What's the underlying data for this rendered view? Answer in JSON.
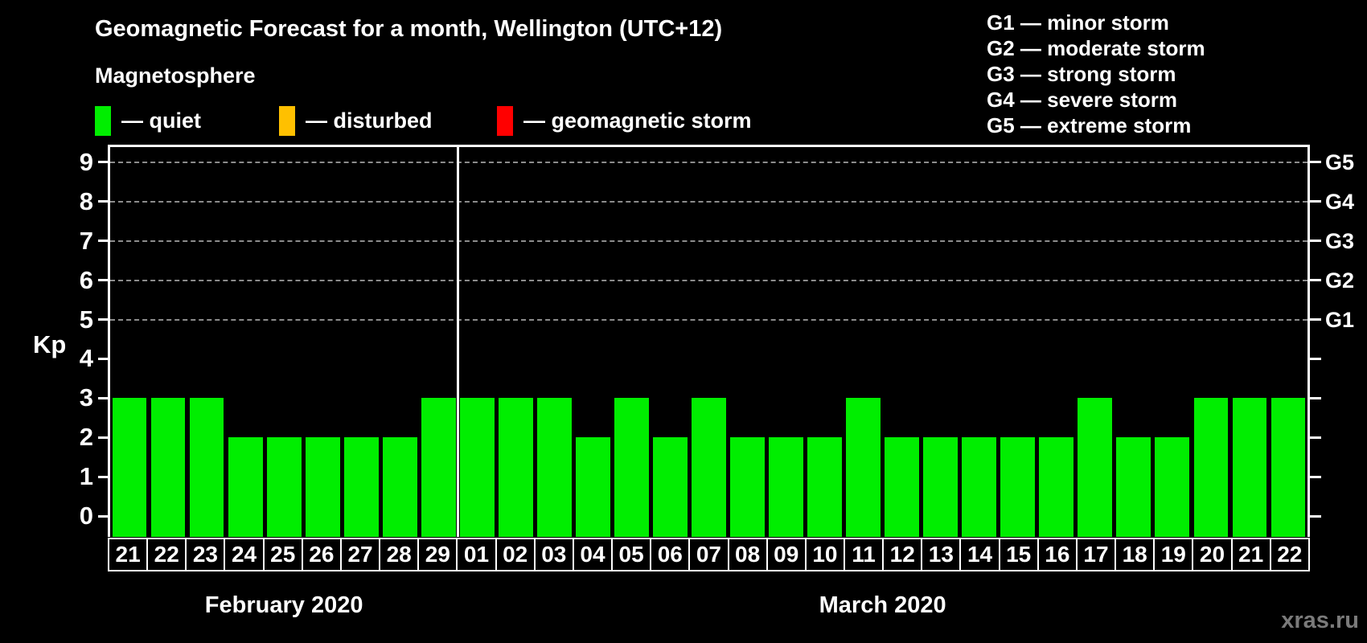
{
  "header": {
    "title": "Geomagnetic Forecast for a month, Wellington (UTC+12)",
    "subtitle": "Magnetosphere"
  },
  "legend": {
    "items": [
      {
        "name": "quiet",
        "label": "— quiet",
        "color": "#00EE00"
      },
      {
        "name": "disturbed",
        "label": "— disturbed",
        "color": "#FFC000"
      },
      {
        "name": "geomagnetic-storm",
        "label": "— geomagnetic storm",
        "color": "#FF0000"
      }
    ]
  },
  "g_scale_legend": {
    "lines": [
      "G1 — minor storm",
      "G2 — moderate storm",
      "G3 — strong storm",
      "G4 — severe storm",
      "G5 — extreme storm"
    ]
  },
  "watermark": "xras.ru",
  "colors": {
    "background": "#000000",
    "text": "#FFFFFF",
    "grid": "#8C8C8C",
    "axis": "#FFFFFF",
    "watermark": "#7A7A7A"
  },
  "chart_data": {
    "type": "bar",
    "title": "Geomagnetic Forecast for a month, Wellington (UTC+12)",
    "ylabel": "Kp",
    "ylim": [
      0,
      9
    ],
    "yticks": [
      0,
      1,
      2,
      3,
      4,
      5,
      6,
      7,
      8,
      9
    ],
    "grid": "dashed horizontal lines at Kp 5 through 9",
    "gridlines_at": [
      5,
      6,
      7,
      8,
      9
    ],
    "right_axis": [
      {
        "kp": 5,
        "label": "G1"
      },
      {
        "kp": 6,
        "label": "G2"
      },
      {
        "kp": 7,
        "label": "G3"
      },
      {
        "kp": 8,
        "label": "G4"
      },
      {
        "kp": 9,
        "label": "G5"
      }
    ],
    "bar_status_all": "quiet",
    "months": [
      {
        "label": "February 2020",
        "days": [
          "21",
          "22",
          "23",
          "24",
          "25",
          "26",
          "27",
          "28",
          "29"
        ],
        "values": [
          3,
          3,
          3,
          2,
          2,
          2,
          2,
          2,
          3
        ]
      },
      {
        "label": "March 2020",
        "days": [
          "01",
          "02",
          "03",
          "04",
          "05",
          "06",
          "07",
          "08",
          "09",
          "10",
          "11",
          "12",
          "13",
          "14",
          "15",
          "16",
          "17",
          "18",
          "19",
          "20",
          "21",
          "22"
        ],
        "values": [
          3,
          3,
          3,
          2,
          3,
          2,
          3,
          2,
          2,
          2,
          3,
          2,
          2,
          2,
          2,
          2,
          3,
          2,
          2,
          3,
          3,
          3
        ]
      }
    ]
  }
}
